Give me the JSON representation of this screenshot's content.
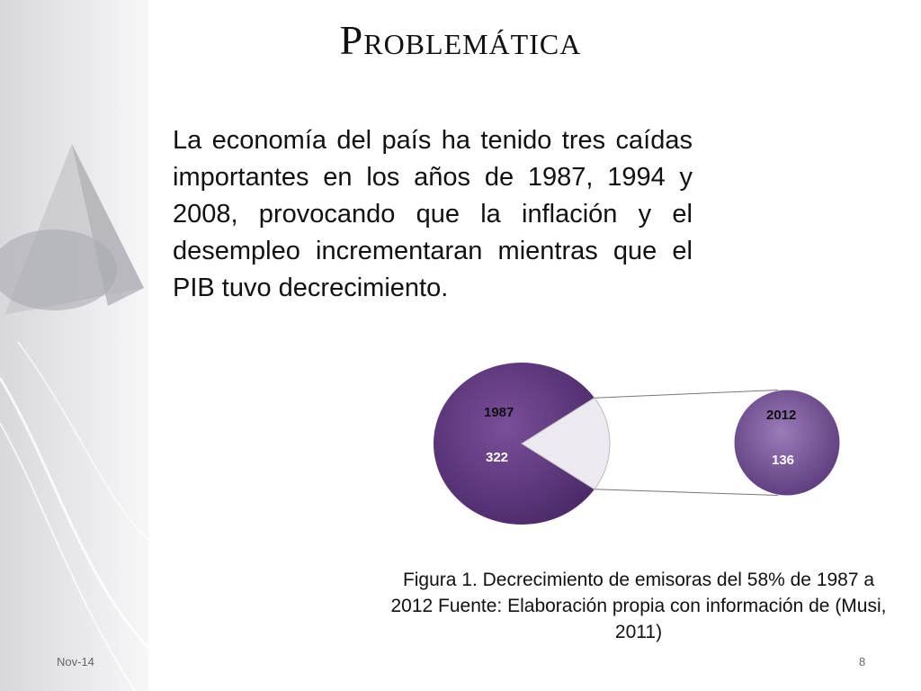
{
  "slide": {
    "title": "Problemática",
    "body": "La economía del país ha tenido tres caídas importantes en los años de 1987, 1994 y 2008, provocando que la inflación y el desempleo incrementaran mientras que el PIB tuvo decrecimiento.",
    "caption": "Figura 1. Decrecimiento de emisoras del 58% de 1987 a 2012  Fuente: Elaboración propia con información de  (Musi, 2011)",
    "footer_date": "Nov-14",
    "page_number": "8"
  },
  "chart_data": {
    "type": "pie",
    "categories": [
      "1987",
      "2012"
    ],
    "values": [
      322,
      136
    ],
    "highlight_fraction": 0.42,
    "colors": {
      "main": "#7a4f9a",
      "main_dark": "#4d2a6a",
      "small": "#9a7bb8",
      "small_dark": "#5c3a7c",
      "slice": "#eceaf0"
    }
  }
}
